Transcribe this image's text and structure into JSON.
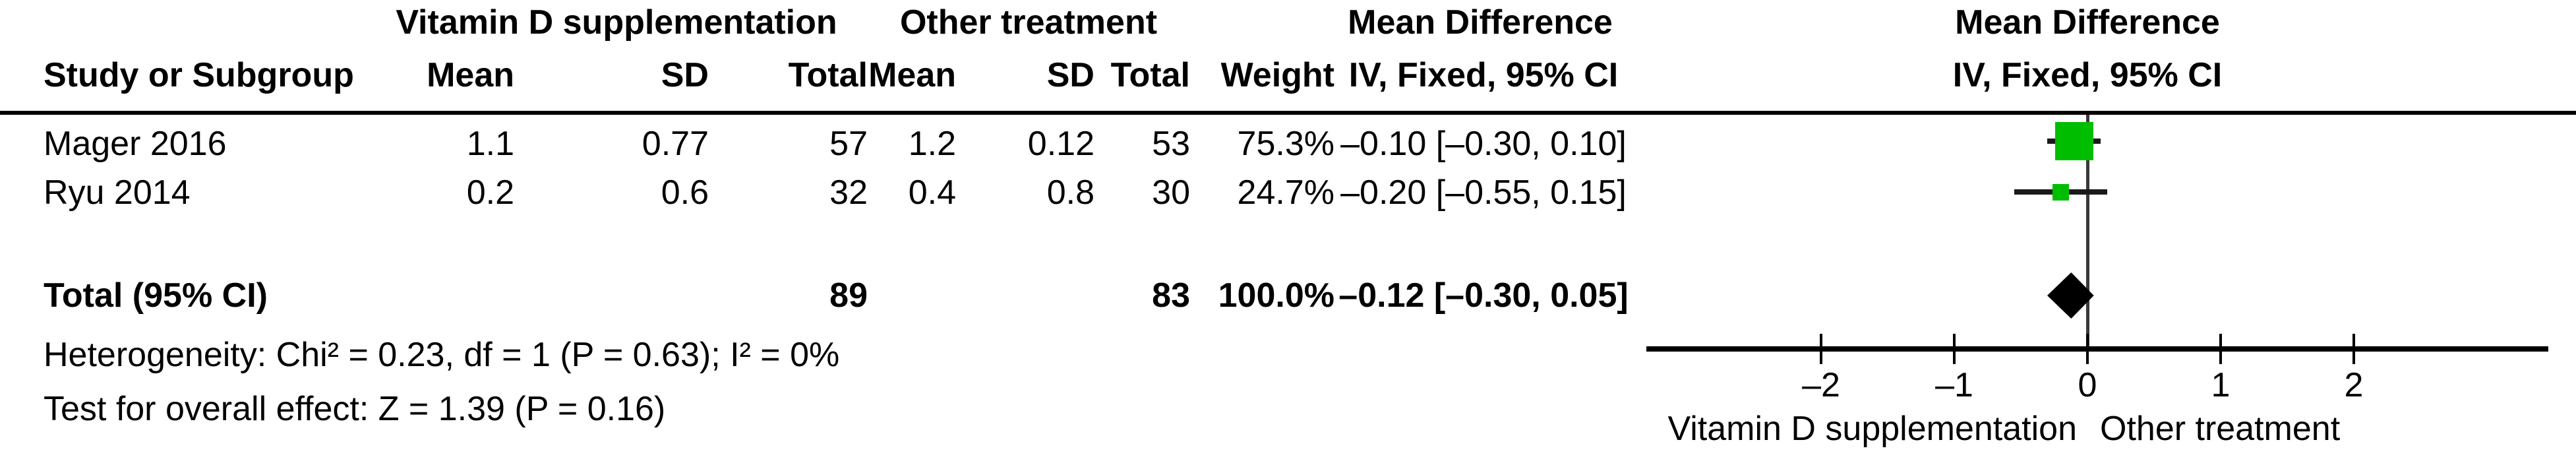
{
  "table": {
    "header": {
      "group_treat": "Vitamin D supplementation",
      "group_ctrl": "Other treatment",
      "group_effect": "Mean Difference",
      "study": "Study or Subgroup",
      "mean_treat": "Mean",
      "sd_treat": "SD",
      "total_treat": "Total",
      "mean_ctrl": "Mean",
      "sd_ctrl": "SD",
      "total_ctrl": "Total",
      "weight": "Weight",
      "effect_method": "IV, Fixed, 95% CI",
      "plot_title_line1": "Mean Difference",
      "plot_title_line2": "IV, Fixed, 95% CI"
    },
    "rows": [
      {
        "study": "Mager 2016",
        "mean_treat": "1.1",
        "sd_treat": "0.77",
        "total_treat": "57",
        "mean_ctrl": "1.2",
        "sd_ctrl": "0.12",
        "total_ctrl": "53",
        "weight": "75.3%",
        "ci_text": "–0.10 [–0.30, 0.10]"
      },
      {
        "study": "Ryu 2014",
        "mean_treat": "0.2",
        "sd_treat": "0.6",
        "total_treat": "32",
        "mean_ctrl": "0.4",
        "sd_ctrl": "0.8",
        "total_ctrl": "30",
        "weight": "24.7%",
        "ci_text": "–0.20 [–0.55, 0.15]"
      }
    ],
    "total_row": {
      "label": "Total (95% CI)",
      "total_treat": "89",
      "total_ctrl": "83",
      "weight": "100.0%",
      "ci_text": "–0.12 [–0.30, 0.05]"
    },
    "footnotes": [
      "Heterogeneity: Chi² = 0.23, df = 1 (P = 0.63); I² = 0%",
      "Test for overall effect: Z = 1.39 (P = 0.16)"
    ]
  },
  "chart_data": {
    "type": "forest",
    "title": "Mean Difference",
    "method": "IV, Fixed, 95% CI",
    "studies": [
      {
        "name": "Mager 2016",
        "mean_treat": 1.1,
        "sd_treat": 0.77,
        "n_treat": 57,
        "mean_ctrl": 1.2,
        "sd_ctrl": 0.12,
        "n_ctrl": 53,
        "weight_pct": 75.3,
        "estimate": -0.1,
        "ci_low": -0.3,
        "ci_high": 0.1,
        "marker_size_px": 58
      },
      {
        "name": "Ryu 2014",
        "mean_treat": 0.2,
        "sd_treat": 0.6,
        "n_treat": 32,
        "mean_ctrl": 0.4,
        "sd_ctrl": 0.8,
        "n_ctrl": 30,
        "weight_pct": 24.7,
        "estimate": -0.2,
        "ci_low": -0.55,
        "ci_high": 0.15,
        "marker_size_px": 25
      }
    ],
    "total": {
      "label": "Total (95% CI)",
      "n_treat": 89,
      "n_ctrl": 83,
      "weight_pct": 100.0,
      "estimate": -0.12,
      "ci_low": -0.3,
      "ci_high": 0.05
    },
    "heterogeneity": "Chi² = 0.23, df = 1 (P = 0.63); I² = 0%",
    "overall_effect_test": "Z = 1.39 (P = 0.16)",
    "axis": {
      "ticks": [
        -2,
        -1,
        0,
        1,
        2
      ],
      "tick_labels": [
        "–2",
        "–1",
        "0",
        "1",
        "2"
      ],
      "xlim": [
        -3.3,
        3.45
      ]
    },
    "xlabel_left": "Vitamin D supplementation",
    "xlabel_right": "Other treatment",
    "marker_color": "#00BD00",
    "diamond_color": "#000000",
    "line_color": "#1a1a1a"
  }
}
